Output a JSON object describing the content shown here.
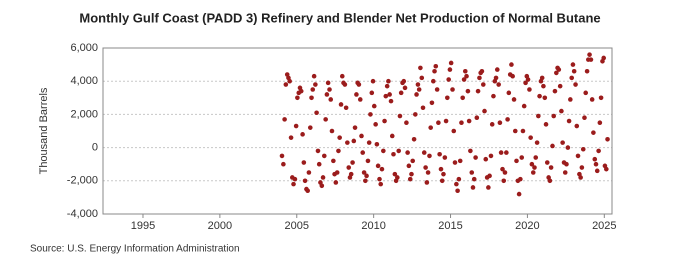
{
  "chart_data": {
    "type": "scatter",
    "title": "Monthly Gulf Coast (PADD 3) Refinery and Blender Net Production of Normal Butane",
    "y_label": "Thousand Barrels",
    "source": "Source: U.S. Energy Information Administration",
    "color": "#9b1c1c",
    "grid": true,
    "xlim": [
      1992.4,
      2025.5
    ],
    "xticks": [
      1995,
      2000,
      2005,
      2010,
      2015,
      2020,
      2025
    ],
    "ylim": [
      -4000,
      6000
    ],
    "yticks": [
      {
        "value": -4000,
        "label": "-4,000"
      },
      {
        "value": -2000,
        "label": "-2,000"
      },
      {
        "value": 0,
        "label": "0"
      },
      {
        "value": 2000,
        "label": "2,000"
      },
      {
        "value": 4000,
        "label": "4,000"
      },
      {
        "value": 6000,
        "label": "6,000"
      }
    ],
    "x": [
      2004.04,
      2004.13,
      2004.21,
      2004.29,
      2004.38,
      2004.46,
      2004.54,
      2004.63,
      2004.71,
      2004.79,
      2004.88,
      2004.96,
      2005.04,
      2005.13,
      2005.21,
      2005.29,
      2005.38,
      2005.46,
      2005.54,
      2005.63,
      2005.71,
      2005.79,
      2005.88,
      2005.96,
      2006.04,
      2006.13,
      2006.21,
      2006.29,
      2006.38,
      2006.46,
      2006.54,
      2006.63,
      2006.71,
      2006.79,
      2006.88,
      2006.96,
      2007.04,
      2007.13,
      2007.21,
      2007.29,
      2007.38,
      2007.46,
      2007.54,
      2007.63,
      2007.71,
      2007.79,
      2007.88,
      2007.96,
      2008.04,
      2008.13,
      2008.21,
      2008.29,
      2008.38,
      2008.46,
      2008.54,
      2008.63,
      2008.71,
      2008.79,
      2008.88,
      2008.96,
      2009.04,
      2009.13,
      2009.21,
      2009.29,
      2009.38,
      2009.46,
      2009.54,
      2009.63,
      2009.71,
      2009.79,
      2009.88,
      2009.96,
      2010.04,
      2010.13,
      2010.21,
      2010.29,
      2010.38,
      2010.46,
      2010.54,
      2010.63,
      2010.71,
      2010.79,
      2010.88,
      2010.96,
      2011.04,
      2011.13,
      2011.21,
      2011.29,
      2011.38,
      2011.46,
      2011.54,
      2011.63,
      2011.71,
      2011.79,
      2011.88,
      2011.96,
      2012.04,
      2012.13,
      2012.21,
      2012.29,
      2012.38,
      2012.46,
      2012.54,
      2012.63,
      2012.71,
      2012.79,
      2012.88,
      2012.96,
      2013.04,
      2013.13,
      2013.21,
      2013.29,
      2013.38,
      2013.46,
      2013.54,
      2013.63,
      2013.71,
      2013.79,
      2013.88,
      2013.96,
      2014.04,
      2014.13,
      2014.21,
      2014.29,
      2014.38,
      2014.46,
      2014.54,
      2014.63,
      2014.71,
      2014.79,
      2014.88,
      2014.96,
      2015.04,
      2015.13,
      2015.21,
      2015.29,
      2015.38,
      2015.46,
      2015.54,
      2015.63,
      2015.71,
      2015.79,
      2015.88,
      2015.96,
      2016.04,
      2016.13,
      2016.21,
      2016.29,
      2016.38,
      2016.46,
      2016.54,
      2016.63,
      2016.71,
      2016.79,
      2016.88,
      2016.96,
      2017.04,
      2017.13,
      2017.21,
      2017.29,
      2017.38,
      2017.46,
      2017.54,
      2017.63,
      2017.71,
      2017.79,
      2017.88,
      2017.96,
      2018.04,
      2018.13,
      2018.21,
      2018.29,
      2018.38,
      2018.46,
      2018.54,
      2018.63,
      2018.71,
      2018.79,
      2018.88,
      2018.96,
      2019.04,
      2019.13,
      2019.21,
      2019.29,
      2019.38,
      2019.46,
      2019.54,
      2019.63,
      2019.71,
      2019.79,
      2019.88,
      2019.96,
      2020.04,
      2020.13,
      2020.21,
      2020.29,
      2020.38,
      2020.46,
      2020.54,
      2020.63,
      2020.71,
      2020.79,
      2020.88,
      2020.96,
      2021.04,
      2021.13,
      2021.21,
      2021.29,
      2021.38,
      2021.46,
      2021.54,
      2021.63,
      2021.71,
      2021.79,
      2021.88,
      2021.96,
      2022.04,
      2022.13,
      2022.21,
      2022.29,
      2022.38,
      2022.46,
      2022.54,
      2022.63,
      2022.71,
      2022.79,
      2022.88,
      2022.96,
      2023.04,
      2023.13,
      2023.21,
      2023.29,
      2023.38,
      2023.46,
      2023.54,
      2023.63,
      2023.71,
      2023.79,
      2023.88,
      2023.96,
      2024.04,
      2024.13,
      2024.21,
      2024.29,
      2024.38,
      2024.46,
      2024.54,
      2024.63,
      2024.71,
      2024.79,
      2024.88,
      2024.96,
      2025.04,
      2025.13,
      2025.21
    ],
    "values": [
      -500,
      -1000,
      1700,
      3800,
      4400,
      4200,
      4000,
      600,
      -1800,
      -2200,
      -1900,
      1300,
      3000,
      3300,
      3600,
      3400,
      800,
      -900,
      -2000,
      -2500,
      -2600,
      -1500,
      1200,
      3000,
      3500,
      4300,
      3800,
      2100,
      -200,
      -1000,
      -2100,
      -2300,
      -1800,
      -500,
      1700,
      3200,
      3900,
      3500,
      2900,
      1000,
      -800,
      -1600,
      -2100,
      -1500,
      -200,
      600,
      2600,
      4300,
      3900,
      3800,
      2400,
      300,
      -1200,
      -1800,
      -1600,
      -900,
      400,
      1200,
      3200,
      3900,
      3800,
      2900,
      700,
      -300,
      -1500,
      -2000,
      -1700,
      -800,
      300,
      2000,
      3300,
      4000,
      2500,
      1400,
      200,
      -1100,
      -1900,
      -2200,
      -1300,
      -200,
      1600,
      3100,
      3700,
      4000,
      3200,
      2800,
      700,
      -400,
      -1600,
      -2000,
      -1800,
      -200,
      1900,
      3300,
      3900,
      4000,
      3600,
      1500,
      -300,
      -1100,
      -1900,
      -1600,
      -800,
      500,
      2000,
      3200,
      3800,
      3500,
      4800,
      4200,
      2400,
      -300,
      -1200,
      -2100,
      -1500,
      -500,
      1200,
      2700,
      4000,
      4600,
      4900,
      3500,
      1500,
      -400,
      -1300,
      -2000,
      -1600,
      -600,
      1600,
      3000,
      4100,
      4700,
      5100,
      3500,
      1000,
      -900,
      -2200,
      -2600,
      -1900,
      -800,
      1500,
      3000,
      4100,
      4600,
      4300,
      3400,
      1600,
      -200,
      -1500,
      -2400,
      -1900,
      -600,
      1800,
      3400,
      4200,
      4500,
      4600,
      3800,
      2200,
      -700,
      -1800,
      -2400,
      -1700,
      -500,
      1400,
      3100,
      4000,
      4200,
      4700,
      3800,
      1500,
      -300,
      -1300,
      -2000,
      -1500,
      -300,
      1700,
      3300,
      4400,
      5000,
      4300,
      2900,
      1000,
      -800,
      -2000,
      -2800,
      -1900,
      -600,
      1000,
      2500,
      3900,
      4300,
      4100,
      3500,
      600,
      -1000,
      -1500,
      -1200,
      -600,
      300,
      1900,
      3100,
      4000,
      4200,
      3700,
      3000,
      1400,
      -900,
      -1800,
      -2000,
      -1200,
      100,
      1900,
      3400,
      4500,
      4800,
      4700,
      3700,
      2200,
      300,
      -900,
      -1500,
      -1000,
      0,
      1600,
      2900,
      4200,
      5000,
      4600,
      3800,
      1300,
      -500,
      -1600,
      -1800,
      -1200,
      -100,
      1800,
      3300,
      4600,
      5300,
      5600,
      5300,
      2900,
      900,
      -700,
      -1000,
      -1400,
      -200,
      1500,
      3000,
      5200,
      5400,
      -1100,
      -1300,
      500
    ]
  }
}
